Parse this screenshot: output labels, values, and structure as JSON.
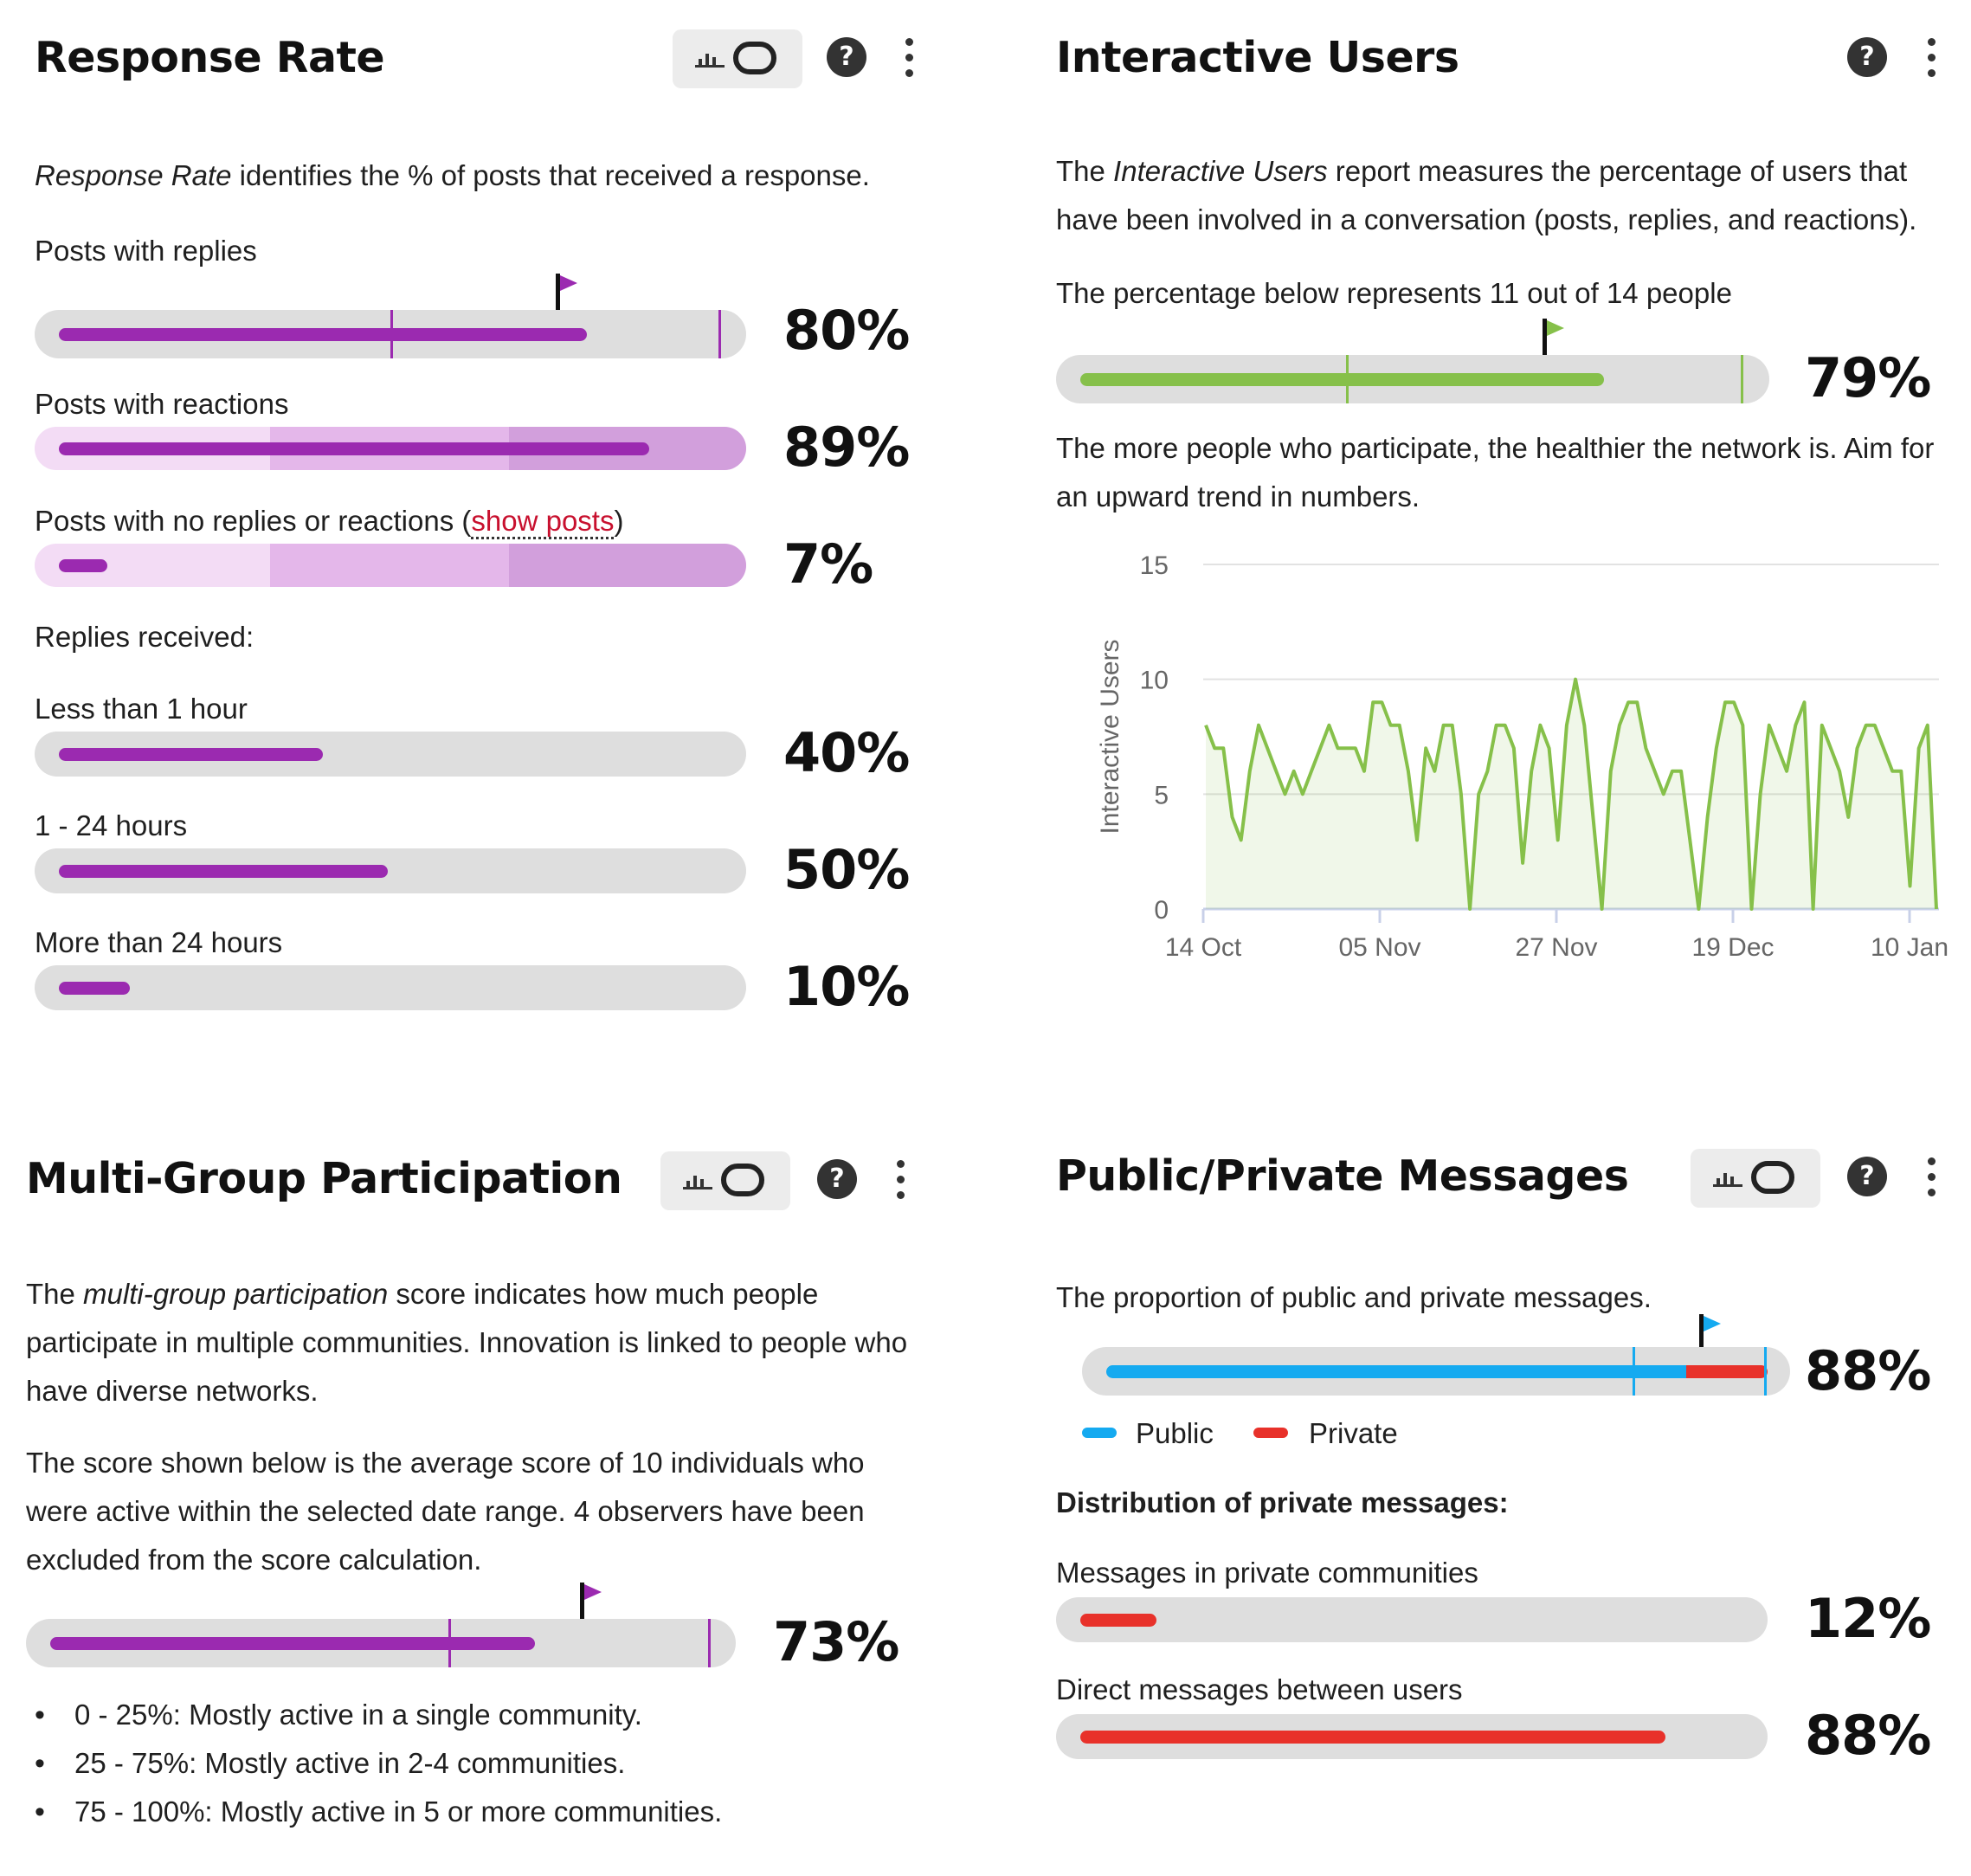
{
  "colors": {
    "purple": "#9b2ab0",
    "green": "#86c04a",
    "blue": "#15aaf0",
    "red": "#e8312a"
  },
  "response_rate": {
    "title": "Response Rate",
    "description_em": "Response Rate",
    "description_rest": " identifies the % of posts that received a response.",
    "posts_with_replies": {
      "label": "Posts with replies",
      "value": "80%"
    },
    "posts_with_reactions": {
      "label": "Posts with reactions",
      "value": "89%"
    },
    "posts_no_response": {
      "label_prefix": "Posts with no replies or reactions (",
      "link": "show posts",
      "label_suffix": ")",
      "value": "7%"
    },
    "replies_received_heading": "Replies received:",
    "less_than_1h": {
      "label": "Less than 1 hour",
      "value": "40%"
    },
    "one_to_24h": {
      "label": "1 - 24 hours",
      "value": "50%"
    },
    "more_than_24h": {
      "label": "More than 24 hours",
      "value": "10%"
    }
  },
  "interactive_users": {
    "title": "Interactive Users",
    "desc1_pre": "The ",
    "desc1_em": "Interactive Users",
    "desc1_post": " report measures the percentage of users that have been involved in a conversation (posts, replies, and reactions).",
    "desc2": "The percentage below represents 11 out of 14 people",
    "value": "79%",
    "desc3": "The more people who participate, the healthier the network is. Aim for an upward trend in numbers."
  },
  "multi_group": {
    "title": "Multi-Group Participation",
    "desc1_pre": "The ",
    "desc1_em": "multi-group participation",
    "desc1_post": " score indicates how much people participate in multiple communities. Innovation is linked to people who have diverse networks.",
    "desc2": "The score shown below is the average score of 10 individuals who were active within the selected date range. 4 observers have been excluded from the score calculation.",
    "value": "73%",
    "bullets": [
      "0 - 25%: Mostly active in a single community.",
      "25 - 75%: Mostly active in 2-4 communities.",
      "75 - 100%: Mostly active in 5 or more communities."
    ]
  },
  "public_private": {
    "title": "Public/Private Messages",
    "desc": "The proportion of public and private messages.",
    "value": "88%",
    "legend_public": "Public",
    "legend_private": "Private",
    "dist_heading": "Distribution of private messages:",
    "private_communities": {
      "label": "Messages in private communities",
      "value": "12%"
    },
    "direct_messages": {
      "label": "Direct messages between users",
      "value": "88%"
    }
  },
  "chart_data": {
    "type": "line",
    "ylabel": "Interactive Users",
    "xlabel": "",
    "ylim": [
      0,
      15
    ],
    "yticks": [
      0,
      5,
      10,
      15
    ],
    "xtick_labels": [
      "14 Oct",
      "05 Nov",
      "27 Nov",
      "19 Dec",
      "10 Jan"
    ],
    "grid": true,
    "series": [
      {
        "values": [
          8,
          7,
          7,
          4,
          3,
          6,
          8,
          7,
          6,
          5,
          6,
          5,
          6,
          7,
          8,
          7,
          7,
          7,
          6,
          9,
          9,
          8,
          8,
          6,
          3,
          7,
          6,
          8,
          8,
          5,
          0,
          5,
          6,
          8,
          8,
          7,
          2,
          6,
          8,
          7,
          3,
          8,
          10,
          8,
          4,
          0,
          6,
          8,
          9,
          9,
          7,
          6,
          5,
          6,
          6,
          3,
          0,
          4,
          7,
          9,
          9,
          8,
          0,
          5,
          8,
          7,
          6,
          8,
          9,
          0,
          8,
          7,
          6,
          4,
          7,
          8,
          8,
          7,
          6,
          6,
          1,
          7,
          8,
          0
        ]
      }
    ]
  }
}
